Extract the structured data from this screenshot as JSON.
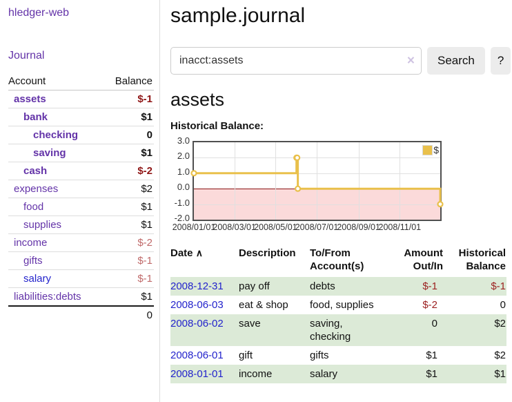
{
  "app": {
    "brand": "hledger-web"
  },
  "colors": {
    "purple": "#6333a8",
    "blue": "#2323cc",
    "neg_dark": "#8f1616",
    "neg_light": "#c06a6a",
    "neg_table": "#9c2121",
    "stripe_green": "#dcead7",
    "chart_gold": "#e9c04b",
    "chart_pink": "#fbdada"
  },
  "icons": {
    "sort_asc_icon": "∧",
    "clear_icon": "×"
  },
  "sidebar": {
    "journal_link": "Journal",
    "accounts": {
      "headers": {
        "account": "Account",
        "balance": "Balance"
      },
      "rows": [
        {
          "name": "assets",
          "balance": "$-1",
          "indent": 0,
          "bold": true,
          "link": "purple"
        },
        {
          "name": "bank",
          "balance": "$1",
          "indent": 1,
          "bold": true,
          "link": "purple"
        },
        {
          "name": "checking",
          "balance": "0",
          "indent": 2,
          "bold": true,
          "link": "purple"
        },
        {
          "name": "saving",
          "balance": "$1",
          "indent": 2,
          "bold": true,
          "link": "purple"
        },
        {
          "name": "cash",
          "balance": "$-2",
          "indent": 1,
          "bold": true,
          "link": "purple"
        },
        {
          "name": "expenses",
          "balance": "$2",
          "indent": 0,
          "bold": false,
          "link": "purple"
        },
        {
          "name": "food",
          "balance": "$1",
          "indent": 1,
          "bold": false,
          "link": "purple"
        },
        {
          "name": "supplies",
          "balance": "$1",
          "indent": 1,
          "bold": false,
          "link": "purple"
        },
        {
          "name": "income",
          "balance": "$-2",
          "indent": 0,
          "bold": false,
          "link": "purple"
        },
        {
          "name": "gifts",
          "balance": "$-1",
          "indent": 1,
          "bold": false,
          "link": "purple"
        },
        {
          "name": "salary",
          "balance": "$-1",
          "indent": 1,
          "bold": false,
          "link": "blue"
        },
        {
          "name": "liabilities:debts",
          "balance": "$1",
          "indent": 0,
          "bold": false,
          "link": "purple"
        }
      ],
      "total": "0"
    }
  },
  "main": {
    "title": "sample.journal",
    "search": {
      "value": "inacct:assets",
      "search_button": "Search",
      "help_button": "?"
    },
    "account_heading": "assets",
    "chart_title": "Historical Balance:"
  },
  "chart_data": {
    "type": "line",
    "title": "Historical Balance",
    "legend_label": "$",
    "step": true,
    "x_start": "2008-01-01",
    "x_end": "2008-12-31",
    "ylim": [
      -2.0,
      3.0
    ],
    "y_ticks": [
      3.0,
      2.0,
      1.0,
      0.0,
      -1.0,
      -2.0
    ],
    "x_ticks": [
      "2008/01/01",
      "2008/03/01",
      "2008/05/01",
      "2008/07/01",
      "2008/09/01",
      "2008/11/01"
    ],
    "points": [
      {
        "x": "2008-01-01",
        "y": 1
      },
      {
        "x": "2008-06-01",
        "y": 2
      },
      {
        "x": "2008-06-02",
        "y": 2
      },
      {
        "x": "2008-06-03",
        "y": 0
      },
      {
        "x": "2008-12-31",
        "y": -1
      }
    ],
    "negative_region_shaded": true,
    "grid": true,
    "legend_position": "top-right"
  },
  "register_table": {
    "headers": {
      "date": "Date",
      "description": "Description",
      "accounts": "To/From Account(s)",
      "amount": "Amount Out/In",
      "balance": "Historical Balance"
    },
    "rows": [
      {
        "date": "2008-12-31",
        "description": "pay off",
        "accounts": "debts",
        "amount": "$-1",
        "balance": "$-1"
      },
      {
        "date": "2008-06-03",
        "description": "eat & shop",
        "accounts": "food, supplies",
        "amount": "$-2",
        "balance": "0"
      },
      {
        "date": "2008-06-02",
        "description": "save",
        "accounts": "saving, checking",
        "amount": "0",
        "balance": "$2"
      },
      {
        "date": "2008-06-01",
        "description": "gift",
        "accounts": "gifts",
        "amount": "$1",
        "balance": "$2"
      },
      {
        "date": "2008-01-01",
        "description": "income",
        "accounts": "salary",
        "amount": "$1",
        "balance": "$1"
      }
    ]
  }
}
